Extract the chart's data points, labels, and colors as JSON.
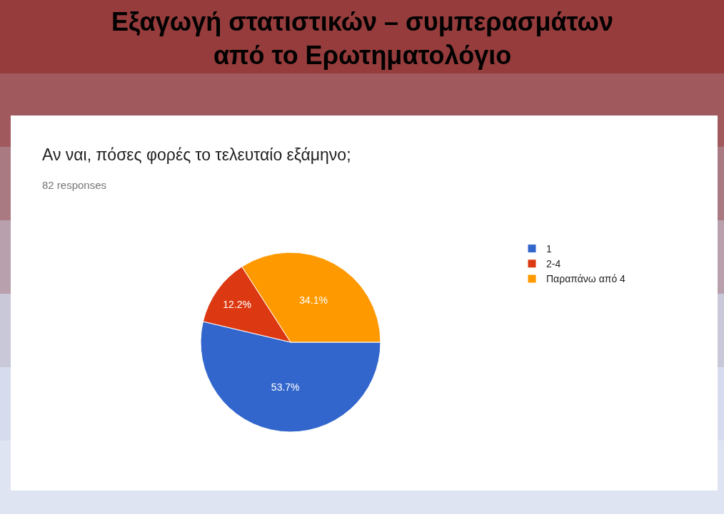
{
  "chart_data": {
    "type": "pie",
    "title": "Εξαγωγή στατιστικών – συμπερασμάτων\nαπό το Ερωτηματολόγιο",
    "subtitle": "Αν ναι, πόσες φορές το τελευταίο εξάμηνο;",
    "annotations": [
      "82 responses"
    ],
    "categories": [
      "1",
      "2-4",
      "Παραπάνω από 4"
    ],
    "values": [
      53.7,
      12.2,
      34.1
    ],
    "value_labels": [
      "53.7%",
      "12.2%",
      "34.1%"
    ],
    "colors": [
      "#3366cc",
      "#dc3912",
      "#ff9900"
    ],
    "legend": "right"
  }
}
